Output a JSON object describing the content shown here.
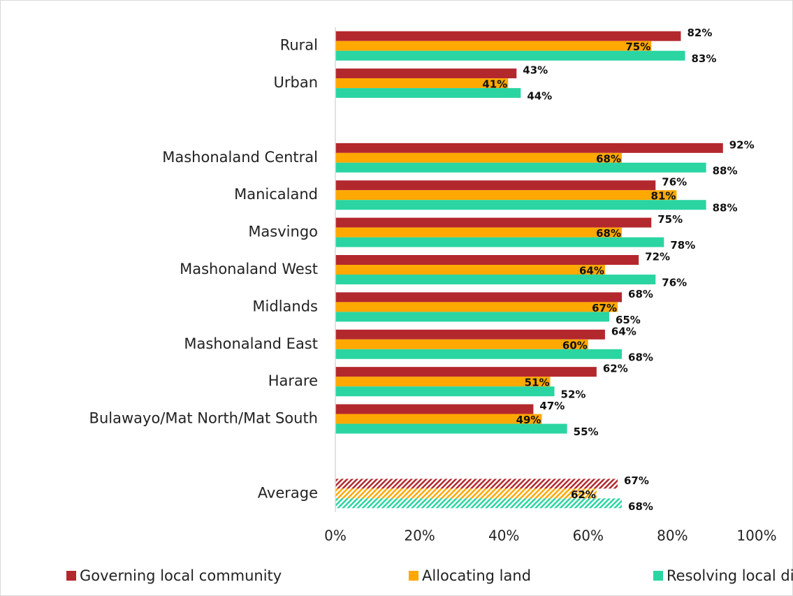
{
  "chart_data": {
    "type": "hbar",
    "categories": [
      "Rural",
      "Urban",
      null,
      "Mashonaland Central",
      "Manicaland",
      "Masvingo",
      "Mashonaland West",
      "Midlands",
      "Mashonaland East",
      "Harare",
      "Bulawayo/Mat North/Mat South",
      null,
      "Average"
    ],
    "series": [
      {
        "name": "Governing local community",
        "color": "#b3282d",
        "values": [
          82,
          43,
          null,
          92,
          76,
          75,
          72,
          68,
          64,
          62,
          47,
          null,
          67
        ],
        "value_labels": [
          "82%",
          "43%",
          null,
          "92%",
          "76%",
          "75%",
          "72%",
          "68%",
          "64%",
          "62%",
          "47%",
          null,
          "67%"
        ]
      },
      {
        "name": "Allocating land",
        "color": "#ffa800",
        "values": [
          75,
          41,
          null,
          68,
          81,
          68,
          64,
          67,
          60,
          51,
          49,
          null,
          62
        ],
        "value_labels": [
          "75%",
          "41%",
          null,
          "68%",
          "81%",
          "68%",
          "64%",
          "67%",
          "60%",
          "51%",
          "49%",
          null,
          "62%"
        ]
      },
      {
        "name": "Resolving local disputes",
        "color": "#2ad5a2",
        "values": [
          83,
          44,
          null,
          88,
          88,
          78,
          76,
          65,
          68,
          52,
          55,
          null,
          68
        ],
        "value_labels": [
          "83%",
          "44%",
          null,
          "88%",
          "88%",
          "78%",
          "76%",
          "65%",
          "68%",
          "52%",
          "55%",
          null,
          "68%"
        ]
      }
    ],
    "hatched_categories": [
      "Average"
    ],
    "xlim": [
      0,
      100
    ],
    "xticks": [
      {
        "value": 0,
        "label": "0%"
      },
      {
        "value": 20,
        "label": "20%"
      },
      {
        "value": 40,
        "label": "40%"
      },
      {
        "value": 60,
        "label": "60%"
      },
      {
        "value": 80,
        "label": "80%"
      },
      {
        "value": 100,
        "label": "100%"
      }
    ],
    "legend": "bottom"
  }
}
